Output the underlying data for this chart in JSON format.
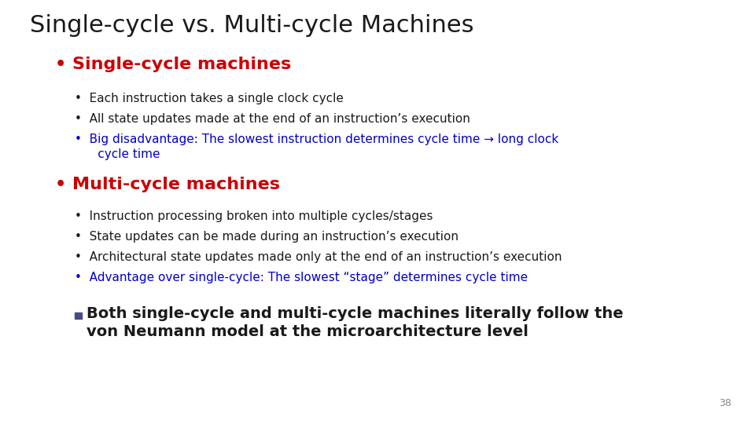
{
  "title": "Single-cycle vs. Multi-cycle Machines",
  "title_color": "#1a1a1a",
  "title_fontsize": 22,
  "background_color": "#ffffff",
  "section1_header": "• Single-cycle machines",
  "section1_color": "#cc0000",
  "section1_fontsize": 16,
  "section1_bullets": [
    {
      "text": "Each instruction takes a single clock cycle",
      "color": "#1a1a1a"
    },
    {
      "text": "All state updates made at the end of an instruction’s execution",
      "color": "#1a1a1a"
    },
    {
      "text": "Big disadvantage: The slowest instruction determines cycle time → long clock\n      cycle time",
      "color": "#0000cc"
    }
  ],
  "section2_header": "• Multi-cycle machines",
  "section2_color": "#cc0000",
  "section2_fontsize": 16,
  "section2_bullets": [
    {
      "text": "Instruction processing broken into multiple cycles/stages",
      "color": "#1a1a1a"
    },
    {
      "text": "State updates can be made during an instruction’s execution",
      "color": "#1a1a1a"
    },
    {
      "text": "Architectural state updates made only at the end of an instruction’s execution",
      "color": "#1a1a1a"
    },
    {
      "text": "Advantage over single-cycle: The slowest “stage” determines cycle time",
      "color": "#0000cc"
    }
  ],
  "note_bullet_color": "#4a4a8a",
  "note_line1": "Both single-cycle and multi-cycle machines literally follow the",
  "note_line2": "von Neumann model at the microarchitecture level",
  "note_text_color": "#1a1a1a",
  "note_fontsize": 14,
  "bullet_fontsize": 11,
  "page_number": "38",
  "page_number_color": "#888888",
  "page_number_fontsize": 9
}
